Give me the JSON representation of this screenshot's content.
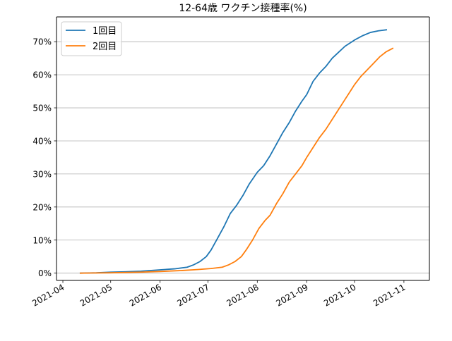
{
  "chart_data": {
    "type": "line",
    "title": "12-64歳 ワクチン接種率(%)",
    "xlabel": "",
    "ylabel": "",
    "x_axis_type": "date",
    "xlim": [
      "2021-03-28",
      "2021-11-17"
    ],
    "ylim": [
      -2.2,
      77.5
    ],
    "x_ticks": [
      {
        "date": "2021-04-01",
        "label": "2021-04"
      },
      {
        "date": "2021-05-01",
        "label": "2021-05"
      },
      {
        "date": "2021-06-01",
        "label": "2021-06"
      },
      {
        "date": "2021-07-01",
        "label": "2021-07"
      },
      {
        "date": "2021-08-01",
        "label": "2021-08"
      },
      {
        "date": "2021-09-01",
        "label": "2021-09"
      },
      {
        "date": "2021-10-01",
        "label": "2021-10"
      },
      {
        "date": "2021-11-01",
        "label": "2021-11"
      }
    ],
    "y_ticks": [
      {
        "value": 0,
        "label": "0%"
      },
      {
        "value": 10,
        "label": "10%"
      },
      {
        "value": 20,
        "label": "20%"
      },
      {
        "value": 30,
        "label": "30%"
      },
      {
        "value": 40,
        "label": "40%"
      },
      {
        "value": 50,
        "label": "50%"
      },
      {
        "value": 60,
        "label": "60%"
      },
      {
        "value": 70,
        "label": "70%"
      }
    ],
    "grid": "horizontal",
    "legend_position": "top-left",
    "series": [
      {
        "name": "1回目",
        "color": "#1f77b4",
        "points": [
          [
            "2021-04-12",
            0.0
          ],
          [
            "2021-04-22",
            0.1
          ],
          [
            "2021-05-01",
            0.3
          ],
          [
            "2021-05-10",
            0.4
          ],
          [
            "2021-05-20",
            0.6
          ],
          [
            "2021-06-01",
            1.0
          ],
          [
            "2021-06-10",
            1.3
          ],
          [
            "2021-06-18",
            1.8
          ],
          [
            "2021-06-22",
            2.5
          ],
          [
            "2021-06-26",
            3.5
          ],
          [
            "2021-06-30",
            5.0
          ],
          [
            "2021-07-03",
            7.0
          ],
          [
            "2021-07-07",
            10.5
          ],
          [
            "2021-07-11",
            14.0
          ],
          [
            "2021-07-15",
            18.0
          ],
          [
            "2021-07-19",
            20.5
          ],
          [
            "2021-07-23",
            23.5
          ],
          [
            "2021-07-27",
            27.0
          ],
          [
            "2021-08-01",
            30.5
          ],
          [
            "2021-08-05",
            32.5
          ],
          [
            "2021-08-09",
            35.5
          ],
          [
            "2021-08-13",
            39.0
          ],
          [
            "2021-08-17",
            42.5
          ],
          [
            "2021-08-21",
            45.5
          ],
          [
            "2021-08-25",
            49.0
          ],
          [
            "2021-08-29",
            52.0
          ],
          [
            "2021-09-01",
            54.0
          ],
          [
            "2021-09-05",
            58.0
          ],
          [
            "2021-09-09",
            60.5
          ],
          [
            "2021-09-13",
            62.5
          ],
          [
            "2021-09-17",
            65.0
          ],
          [
            "2021-09-21",
            66.8
          ],
          [
            "2021-09-25",
            68.6
          ],
          [
            "2021-10-01",
            70.5
          ],
          [
            "2021-10-06",
            71.8
          ],
          [
            "2021-10-11",
            72.8
          ],
          [
            "2021-10-16",
            73.3
          ],
          [
            "2021-10-21",
            73.6
          ]
        ]
      },
      {
        "name": "2回目",
        "color": "#ff7f0e",
        "points": [
          [
            "2021-04-12",
            0.0
          ],
          [
            "2021-05-01",
            0.1
          ],
          [
            "2021-05-20",
            0.3
          ],
          [
            "2021-06-01",
            0.5
          ],
          [
            "2021-06-15",
            0.8
          ],
          [
            "2021-06-25",
            1.1
          ],
          [
            "2021-07-03",
            1.4
          ],
          [
            "2021-07-10",
            1.8
          ],
          [
            "2021-07-14",
            2.5
          ],
          [
            "2021-07-18",
            3.5
          ],
          [
            "2021-07-22",
            5.0
          ],
          [
            "2021-07-25",
            7.0
          ],
          [
            "2021-07-29",
            10.0
          ],
          [
            "2021-08-02",
            13.5
          ],
          [
            "2021-08-06",
            16.0
          ],
          [
            "2021-08-09",
            17.5
          ],
          [
            "2021-08-13",
            21.0
          ],
          [
            "2021-08-17",
            24.0
          ],
          [
            "2021-08-21",
            27.5
          ],
          [
            "2021-08-25",
            30.0
          ],
          [
            "2021-08-29",
            32.5
          ],
          [
            "2021-09-01",
            35.0
          ],
          [
            "2021-09-05",
            38.0
          ],
          [
            "2021-09-09",
            41.0
          ],
          [
            "2021-09-13",
            43.5
          ],
          [
            "2021-09-17",
            46.5
          ],
          [
            "2021-09-21",
            49.5
          ],
          [
            "2021-09-25",
            52.5
          ],
          [
            "2021-09-29",
            55.5
          ],
          [
            "2021-10-01",
            57.0
          ],
          [
            "2021-10-05",
            59.5
          ],
          [
            "2021-10-09",
            61.5
          ],
          [
            "2021-10-13",
            63.5
          ],
          [
            "2021-10-17",
            65.5
          ],
          [
            "2021-10-21",
            67.0
          ],
          [
            "2021-10-25",
            68.0
          ]
        ]
      }
    ]
  }
}
